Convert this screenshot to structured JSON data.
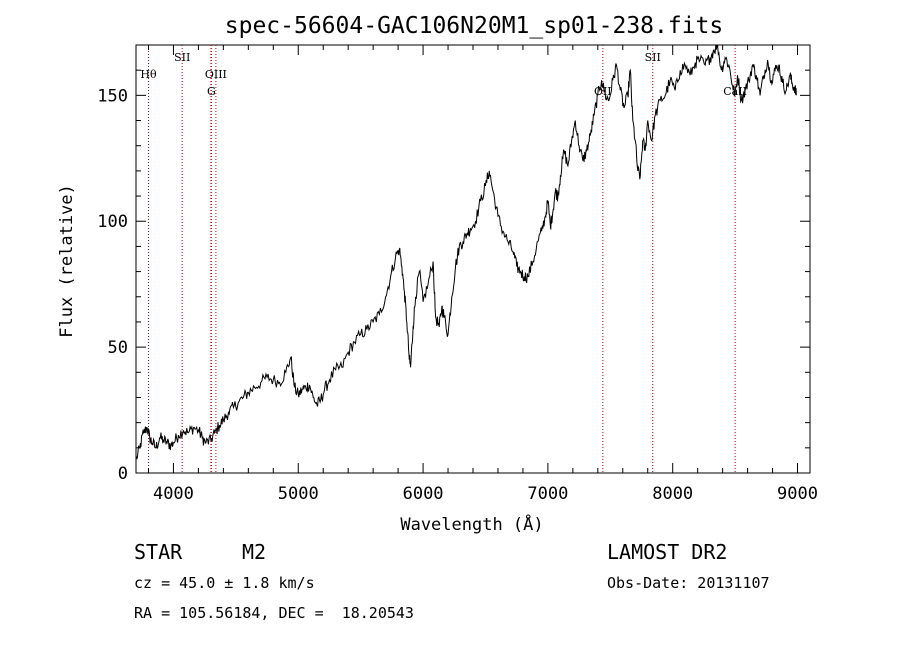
{
  "chart_data": {
    "type": "line",
    "title": "spec-56604-GAC106N20M1_sp01-238.fits",
    "xlabel": "Wavelength (Å)",
    "ylabel": "Flux (relative)",
    "xlim": [
      3700,
      9100
    ],
    "ylim": [
      0,
      170
    ],
    "xticks": [
      4000,
      5000,
      6000,
      7000,
      8000,
      9000
    ],
    "yticks": [
      0,
      50,
      100,
      150
    ],
    "line_color": "#000000",
    "marker_color": "#cc0000",
    "series": [
      {
        "x": [
          3700,
          3730,
          3760,
          3790,
          3810,
          3830,
          3860,
          3890,
          3920,
          3950,
          3980,
          4000,
          4040,
          4080,
          4120,
          4160,
          4200,
          4230,
          4260,
          4300,
          4330,
          4370,
          4400,
          4440,
          4480,
          4520,
          4560,
          4600,
          4650,
          4700,
          4750,
          4800,
          4850,
          4900,
          4940,
          4970,
          5000,
          5030,
          5060,
          5090,
          5120,
          5150,
          5180,
          5210,
          5250,
          5300,
          5350,
          5400,
          5450,
          5500,
          5550,
          5600,
          5650,
          5700,
          5740,
          5780,
          5810,
          5830,
          5850,
          5870,
          5890,
          5900,
          5920,
          5940,
          5970,
          6000,
          6040,
          6080,
          6100,
          6130,
          6150,
          6170,
          6200,
          6230,
          6260,
          6290,
          6320,
          6350,
          6380,
          6420,
          6460,
          6500,
          6530,
          6560,
          6600,
          6640,
          6680,
          6720,
          6750,
          6780,
          6810,
          6840,
          6880,
          6920,
          6950,
          6980,
          7000,
          7020,
          7040,
          7060,
          7080,
          7100,
          7130,
          7160,
          7190,
          7220,
          7250,
          7280,
          7310,
          7340,
          7370,
          7400,
          7430,
          7460,
          7490,
          7520,
          7550,
          7580,
          7610,
          7640,
          7660,
          7680,
          7700,
          7720,
          7740,
          7760,
          7780,
          7800,
          7830,
          7860,
          7900,
          7940,
          7980,
          8020,
          8060,
          8100,
          8140,
          8180,
          8220,
          8260,
          8300,
          8330,
          8360,
          8390,
          8420,
          8450,
          8480,
          8500,
          8520,
          8550,
          8580,
          8610,
          8640,
          8670,
          8700,
          8730,
          8760,
          8790,
          8820,
          8850,
          8880,
          8910,
          8940,
          8960,
          8980,
          8990
        ],
        "y": [
          5,
          10,
          16,
          18,
          14,
          12,
          10,
          14,
          13,
          12,
          11,
          12,
          15,
          17,
          16,
          18,
          17,
          14,
          12,
          13,
          16,
          19,
          21,
          24,
          26,
          28,
          30,
          32,
          34,
          36,
          38,
          37,
          36,
          40,
          46,
          34,
          31,
          33,
          34,
          35,
          30,
          27,
          29,
          33,
          37,
          41,
          42,
          48,
          52,
          55,
          57,
          60,
          63,
          70,
          78,
          86,
          89,
          82,
          72,
          60,
          45,
          42,
          58,
          70,
          80,
          68,
          75,
          84,
          62,
          58,
          66,
          62,
          55,
          70,
          82,
          90,
          92,
          95,
          97,
          100,
          108,
          114,
          120,
          112,
          102,
          96,
          92,
          88,
          82,
          80,
          78,
          78,
          84,
          92,
          96,
          102,
          108,
          98,
          104,
          112,
          110,
          118,
          128,
          122,
          132,
          140,
          130,
          124,
          128,
          134,
          142,
          150,
          156,
          150,
          148,
          156,
          162,
          152,
          145,
          150,
          160,
          140,
          132,
          120,
          118,
          132,
          128,
          140,
          132,
          142,
          148,
          150,
          156,
          152,
          160,
          162,
          158,
          163,
          164,
          162,
          165,
          168,
          170,
          160,
          165,
          162,
          154,
          150,
          158,
          148,
          152,
          156,
          162,
          158,
          150,
          158,
          164,
          156,
          160,
          162,
          155,
          152,
          158,
          154,
          153,
          150
        ],
        "markers": [
          {
            "x": 3800,
            "label": "Hθ",
            "row": 1
          },
          {
            "x": 4070,
            "label": "SII",
            "row": 0
          },
          {
            "x": 4300,
            "label": "",
            "row": 0
          },
          {
            "x": 4340,
            "label": "OIII",
            "row": 1
          },
          {
            "x": 4304,
            "label": "G",
            "row": 2
          },
          {
            "x": 7440,
            "label": "OII",
            "row": 2
          },
          {
            "x": 7840,
            "label": "SII",
            "row": 0
          },
          {
            "x": 8500,
            "label": "CaII",
            "row": 2
          }
        ]
      }
    ]
  },
  "info": {
    "object_class": "STAR",
    "subclass": "M2",
    "survey": "LAMOST DR2",
    "redshift": "cz = 45.0 ± 1.8 km/s",
    "obs_date": "Obs-Date: 20131107",
    "coords": "RA = 105.56184, DEC =  18.20543"
  }
}
